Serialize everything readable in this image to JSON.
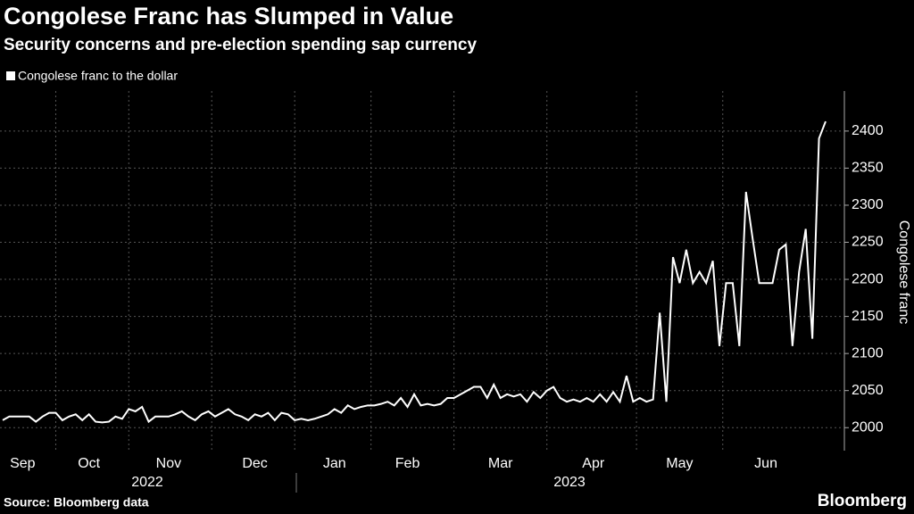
{
  "chart_data": {
    "type": "line",
    "title": "Congolese Franc has Slumped in Value",
    "subtitle": "Security concerns and pre-election spending sap currency",
    "y_axis_label": "Congolese franc",
    "source": "Source: Bloomberg data",
    "brand": "Bloomberg",
    "years": [
      "2022",
      "2023"
    ],
    "categories": [
      null,
      null,
      null,
      "Sep",
      null,
      null,
      null,
      null,
      null,
      null,
      null,
      null,
      null,
      "Oct",
      null,
      null,
      null,
      null,
      null,
      null,
      null,
      null,
      null,
      null,
      null,
      "Nov",
      null,
      null,
      null,
      null,
      null,
      null,
      null,
      null,
      null,
      null,
      null,
      null,
      "Dec",
      null,
      null,
      null,
      null,
      null,
      null,
      null,
      null,
      null,
      null,
      null,
      "Jan",
      null,
      null,
      null,
      null,
      null,
      null,
      null,
      null,
      null,
      null,
      "Feb",
      null,
      null,
      null,
      null,
      null,
      null,
      null,
      null,
      null,
      null,
      null,
      null,
      null,
      "Mar",
      null,
      null,
      null,
      null,
      null,
      null,
      null,
      null,
      null,
      null,
      null,
      null,
      null,
      "Apr",
      null,
      null,
      null,
      null,
      null,
      null,
      null,
      null,
      null,
      null,
      null,
      null,
      "May",
      null,
      null,
      null,
      null,
      null,
      null,
      null,
      null,
      null,
      null,
      null,
      null,
      "Jun",
      null,
      null,
      null,
      null,
      null,
      null,
      null,
      null,
      null
    ],
    "series": [
      {
        "name": "Congolese franc to the dollar",
        "color": "#ffffff",
        "values": [
          2010,
          2015,
          2015,
          2015,
          2015,
          2008,
          2015,
          2020,
          2020,
          2010,
          2015,
          2018,
          2010,
          2018,
          2008,
          2007,
          2008,
          2015,
          2012,
          2025,
          2022,
          2028,
          2008,
          2015,
          2015,
          2015,
          2018,
          2022,
          2015,
          2010,
          2018,
          2022,
          2015,
          2020,
          2025,
          2018,
          2015,
          2010,
          2018,
          2015,
          2020,
          2010,
          2020,
          2018,
          2010,
          2012,
          2010,
          2012,
          2015,
          2018,
          2025,
          2020,
          2030,
          2025,
          2028,
          2030,
          2030,
          2032,
          2035,
          2030,
          2040,
          2028,
          2045,
          2030,
          2032,
          2030,
          2032,
          2040,
          2040,
          2045,
          2050,
          2055,
          2055,
          2040,
          2058,
          2040,
          2045,
          2042,
          2045,
          2035,
          2048,
          2040,
          2050,
          2055,
          2040,
          2035,
          2038,
          2035,
          2040,
          2035,
          2045,
          2035,
          2048,
          2035,
          2070,
          2035,
          2040,
          2035,
          2038,
          2155,
          2035,
          2230,
          2195,
          2240,
          2195,
          2210,
          2195,
          2225,
          2110,
          2195,
          2195,
          2110,
          2318,
          2255,
          2195,
          2195,
          2195,
          2240,
          2247,
          2110,
          2210,
          2268,
          2120,
          2390,
          2413
        ]
      }
    ],
    "ylim": [
      1969,
      2454
    ],
    "yticks": [
      2000,
      2050,
      2100,
      2150,
      2200,
      2250,
      2300,
      2350,
      2400
    ],
    "grid": true
  }
}
